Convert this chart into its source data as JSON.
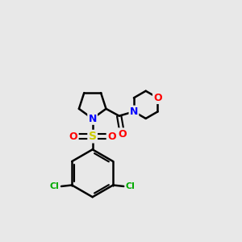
{
  "background_color": "#e8e8e8",
  "atom_colors": {
    "C": "#000000",
    "N": "#0000ff",
    "O": "#ff0000",
    "S": "#cccc00",
    "Cl": "#00aa00"
  },
  "bond_color": "#000000",
  "bond_width": 1.8,
  "figsize": [
    3.0,
    3.0
  ],
  "dpi": 100
}
